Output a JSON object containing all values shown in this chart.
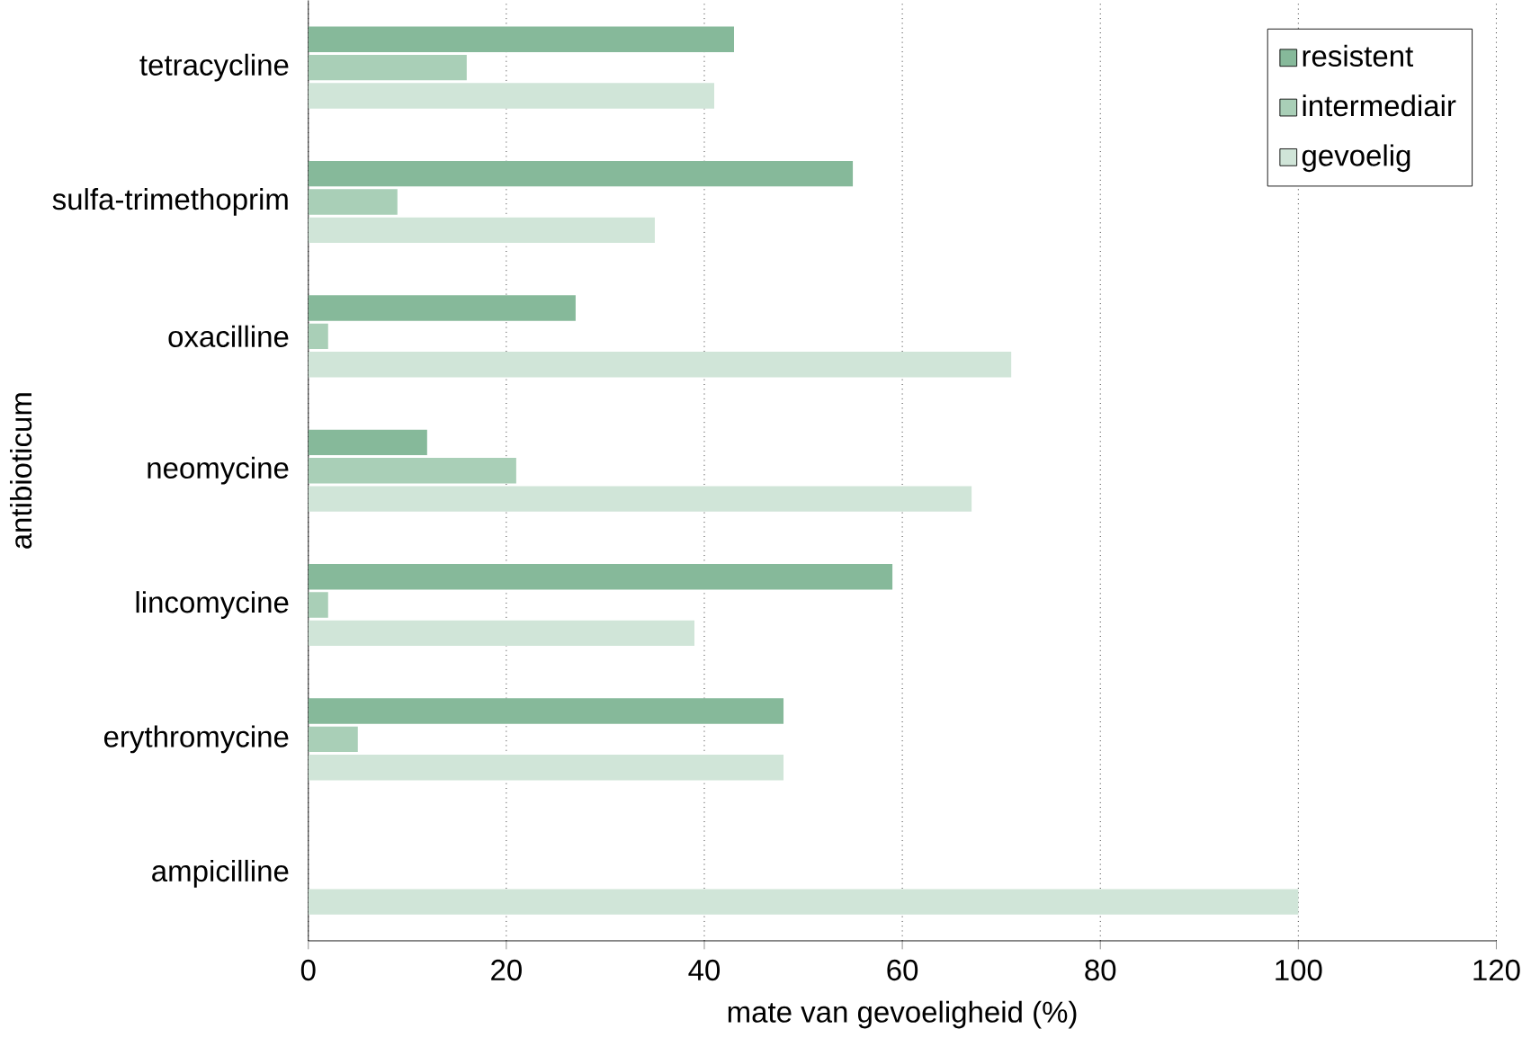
{
  "chart_data": {
    "type": "bar",
    "orientation": "horizontal",
    "xlabel": "mate van gevoeligheid (%)",
    "ylabel": "antibioticum",
    "categories": [
      "tetracycline",
      "sulfa-trimethoprim",
      "oxacilline",
      "neomycine",
      "lincomycine",
      "erythromycine",
      "ampicilline"
    ],
    "series": [
      {
        "name": "resistent",
        "color": "#86b99a",
        "values": [
          43,
          55,
          27,
          12,
          59,
          48,
          0
        ]
      },
      {
        "name": "intermediair",
        "color": "#a9cfb7",
        "values": [
          16,
          9,
          2,
          21,
          2,
          5,
          0
        ]
      },
      {
        "name": "gevoelig",
        "color": "#d0e5d8",
        "values": [
          41,
          35,
          71,
          67,
          39,
          48,
          100
        ]
      }
    ],
    "xlim": [
      0,
      120
    ],
    "xticks": [
      0,
      20,
      40,
      60,
      80,
      100,
      120
    ],
    "grid": "x",
    "legend": "top right"
  }
}
